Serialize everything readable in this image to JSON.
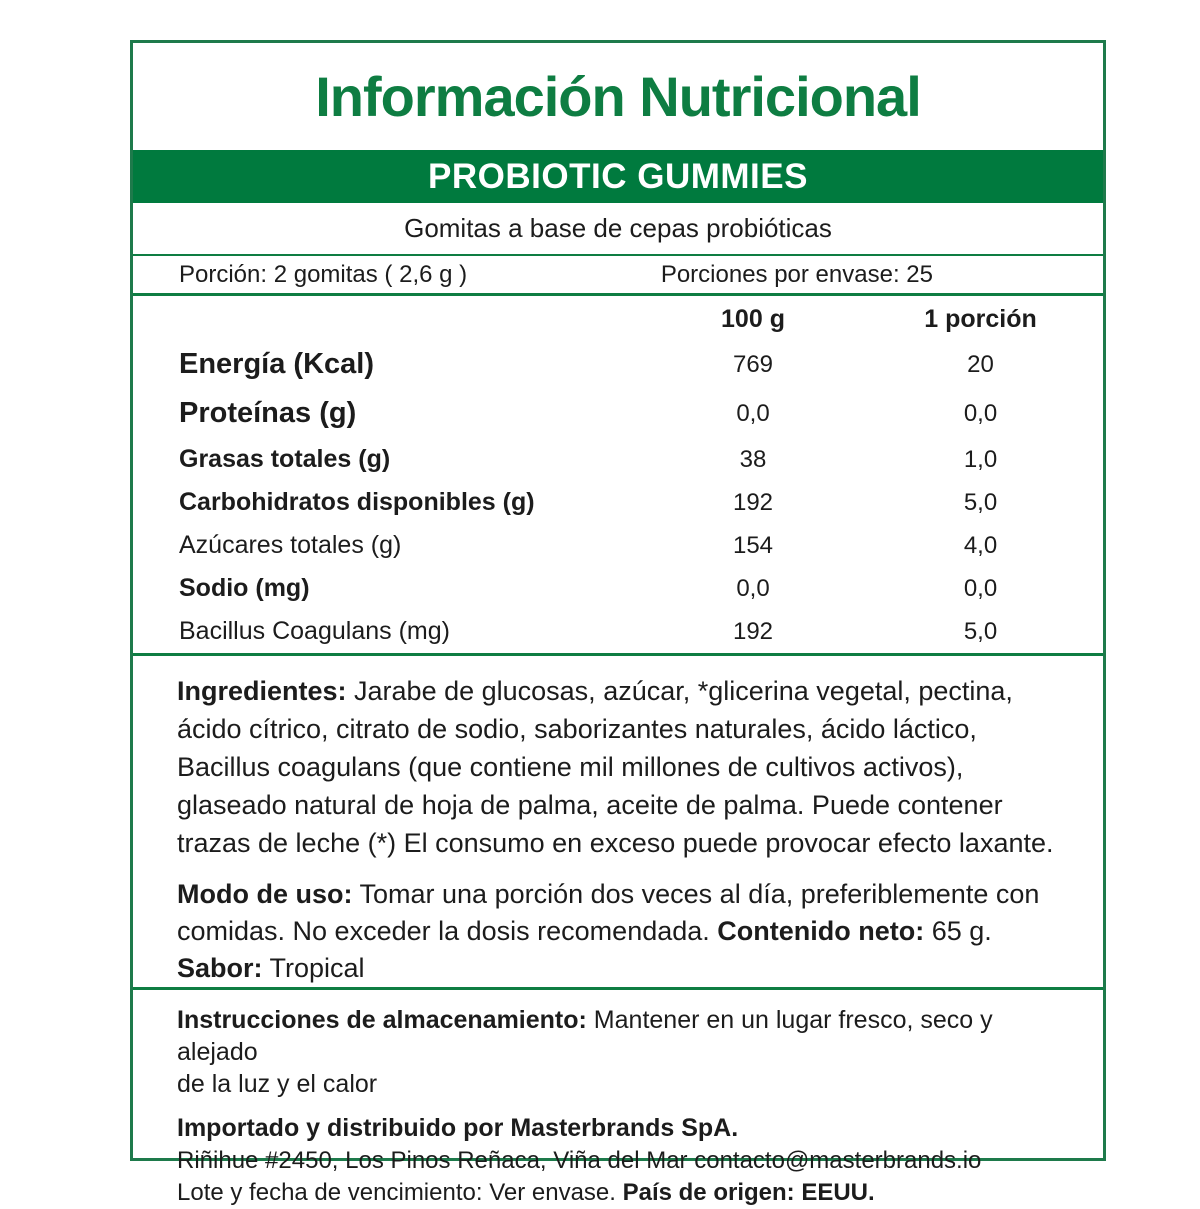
{
  "colors": {
    "brand_green": "#007A3E",
    "title_green": "#0E7D42",
    "border_green": "#1E7A4B",
    "banner_text": "#FFFFFF",
    "body_text": "#1C1C1C"
  },
  "header": {
    "title": "Información Nutricional",
    "product_name": "PROBIOTIC GUMMIES",
    "subtitle": "Gomitas a base de cepas probióticas"
  },
  "serving": {
    "portion_label": "Porción:",
    "portion_value": " 2 gomitas  ( 2,6 g )",
    "servings_label": "Porciones por envase:",
    "servings_value": " 25"
  },
  "nutrition_table": {
    "columns": {
      "per_100g": "100 g",
      "per_portion": "1 porción"
    },
    "rows": [
      {
        "name": "Energía (Kcal)",
        "per_100g": "769",
        "per_portion": "20"
      },
      {
        "name": "Proteínas (g)",
        "per_100g": "0,0",
        "per_portion": "0,0"
      },
      {
        "name": "Grasas totales (g)",
        "per_100g": "38",
        "per_portion": "1,0"
      },
      {
        "name": "Carbohidratos disponibles (g)",
        "per_100g": "192",
        "per_portion": "5,0"
      },
      {
        "name": "Azúcares totales (g)",
        "per_100g": "154",
        "per_portion": "4,0"
      },
      {
        "name": "Sodio (mg)",
        "per_100g": "0,0",
        "per_portion": "0,0"
      },
      {
        "name": "Bacillus Coagulans (mg)",
        "per_100g": "192",
        "per_portion": "5,0"
      }
    ]
  },
  "ingredients": {
    "label": "Ingredientes:",
    "text": " Jarabe de glucosas, azúcar, *glicerina vegetal, pectina, ácido cítrico, citrato de sodio, saborizantes naturales, ácido láctico, Bacillus coagulans (que contiene mil millones de cultivos activos), glaseado natural de hoja de palma, aceite de palma. Puede contener trazas de leche (*) El consumo en exceso puede provocar efecto laxante."
  },
  "usage": {
    "label": "Modo de uso:",
    "text": " Tomar una porción dos veces al día, preferiblemente con comidas. No exceder la dosis recomendada.  ",
    "net_content_label": "Contenido neto:",
    "net_content_value": " 65 g."
  },
  "flavor": {
    "label": "Sabor:",
    "value": " Tropical"
  },
  "storage": {
    "label": "Instrucciones de almacenamiento:",
    "text": "  Mantener en un lugar fresco, seco y alejado",
    "text_line2": " de la luz y el calor"
  },
  "distribution": {
    "importer": "Importado y distribuido por Masterbrands SpA.",
    "address": "Riñihue #2450, Los Pinos Reñaca, Viña del Mar contacto@masterbrands.io",
    "lot": "Lote y fecha de vencimiento: Ver envase.  ",
    "origin_label": "País de origen:",
    "origin_value": " EEUU."
  }
}
